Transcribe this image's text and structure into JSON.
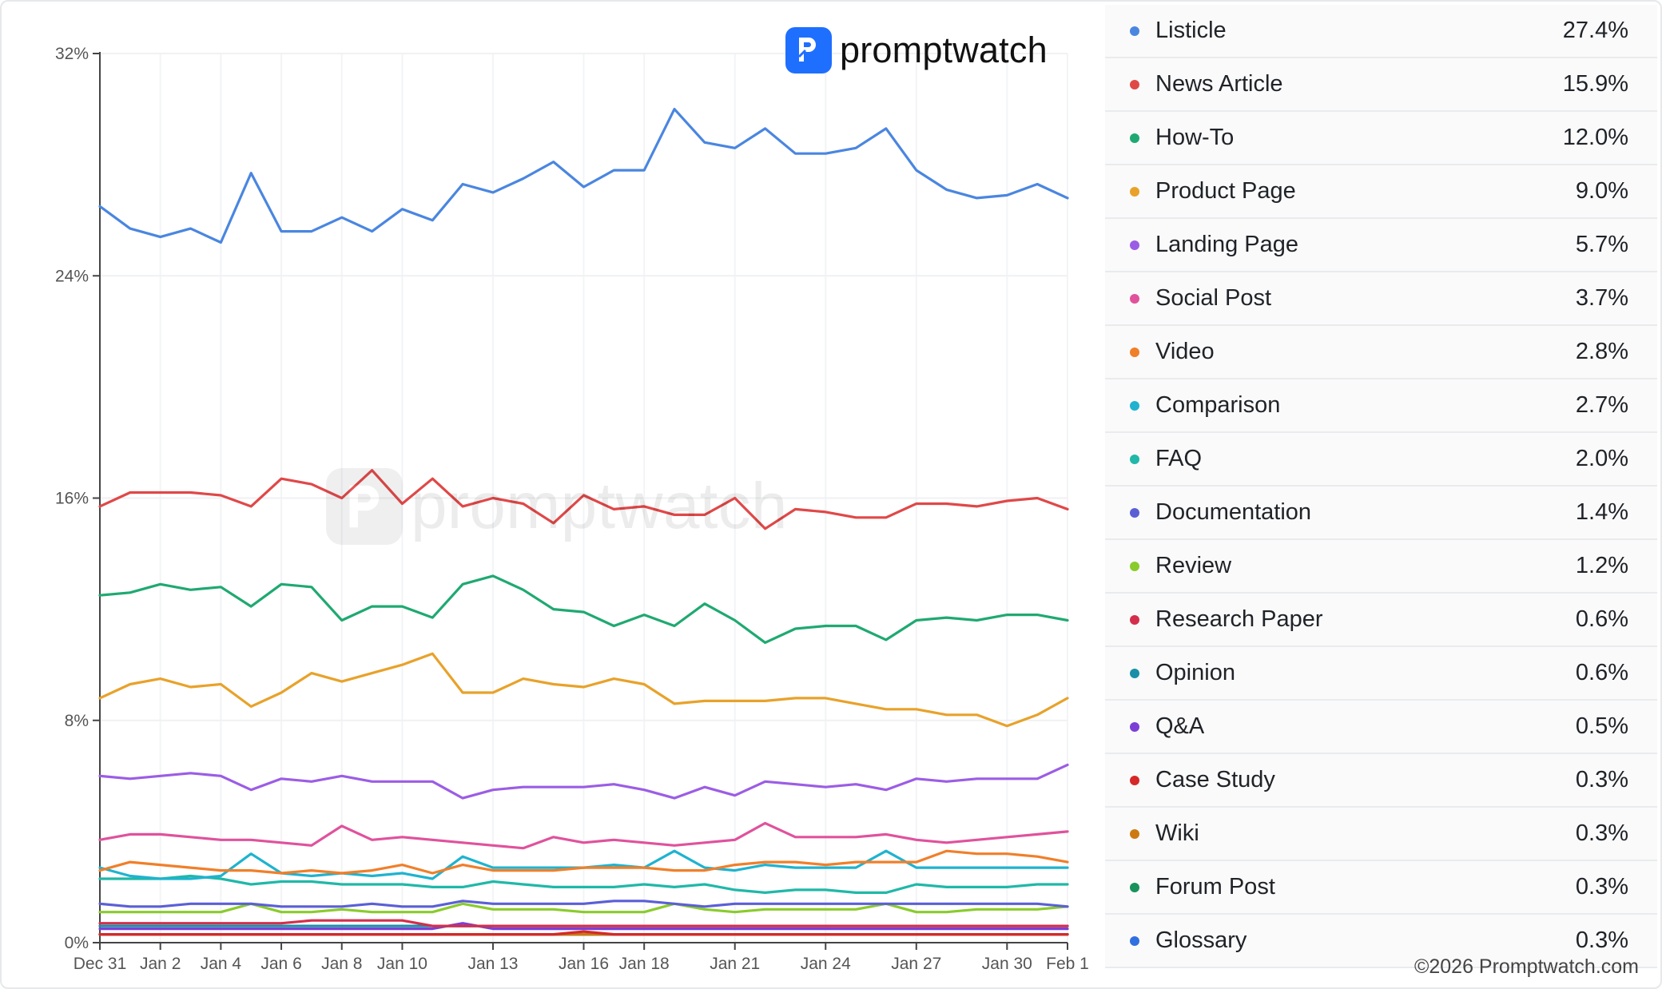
{
  "brand": {
    "name": "promptwatch",
    "accent": "#1f6fff"
  },
  "copyright": "©2026 Promptwatch.com",
  "chart_data": {
    "type": "line",
    "title": "",
    "xlabel": "",
    "ylabel": "",
    "ylim": [
      0,
      32
    ],
    "y_ticks": [
      {
        "value": 0,
        "label": "0%"
      },
      {
        "value": 8,
        "label": "8%"
      },
      {
        "value": 16,
        "label": "16%"
      },
      {
        "value": 24,
        "label": "24%"
      },
      {
        "value": 32,
        "label": "32%"
      }
    ],
    "x_ticks": [
      {
        "index": 0,
        "label": "Dec 31"
      },
      {
        "index": 2,
        "label": "Jan 2"
      },
      {
        "index": 4,
        "label": "Jan 4"
      },
      {
        "index": 6,
        "label": "Jan 6"
      },
      {
        "index": 8,
        "label": "Jan 8"
      },
      {
        "index": 10,
        "label": "Jan 10"
      },
      {
        "index": 13,
        "label": "Jan 13"
      },
      {
        "index": 16,
        "label": "Jan 16"
      },
      {
        "index": 18,
        "label": "Jan 18"
      },
      {
        "index": 21,
        "label": "Jan 21"
      },
      {
        "index": 24,
        "label": "Jan 24"
      },
      {
        "index": 27,
        "label": "Jan 27"
      },
      {
        "index": 30,
        "label": "Jan 30"
      },
      {
        "index": 32,
        "label": "Feb 1"
      }
    ],
    "x": [
      "Dec 31",
      "Jan 1",
      "Jan 2",
      "Jan 3",
      "Jan 4",
      "Jan 5",
      "Jan 6",
      "Jan 7",
      "Jan 8",
      "Jan 9",
      "Jan 10",
      "Jan 11",
      "Jan 12",
      "Jan 13",
      "Jan 14",
      "Jan 15",
      "Jan 16",
      "Jan 17",
      "Jan 18",
      "Jan 19",
      "Jan 20",
      "Jan 21",
      "Jan 22",
      "Jan 23",
      "Jan 24",
      "Jan 25",
      "Jan 26",
      "Jan 27",
      "Jan 28",
      "Jan 29",
      "Jan 30",
      "Jan 31",
      "Feb 1"
    ],
    "grid": true,
    "legend_position": "right",
    "series": [
      {
        "name": "Listicle",
        "value_label": "27.4%",
        "color": "#4a86e0",
        "values": [
          26.5,
          25.7,
          25.4,
          25.7,
          25.2,
          27.7,
          25.6,
          25.6,
          26.1,
          25.6,
          26.4,
          26.0,
          27.3,
          27.0,
          27.5,
          28.1,
          27.2,
          27.8,
          27.8,
          30.0,
          28.8,
          28.6,
          29.3,
          28.4,
          28.4,
          28.6,
          29.3,
          27.8,
          27.1,
          26.8,
          26.9,
          27.3,
          26.8
        ]
      },
      {
        "name": "News Article",
        "value_label": "15.9%",
        "color": "#e04848",
        "values": [
          15.7,
          16.2,
          16.2,
          16.2,
          16.1,
          15.7,
          16.7,
          16.5,
          16.0,
          17.0,
          15.8,
          16.7,
          15.7,
          16.0,
          15.8,
          15.1,
          16.1,
          15.6,
          15.7,
          15.4,
          15.4,
          16.0,
          14.9,
          15.6,
          15.5,
          15.3,
          15.3,
          15.8,
          15.8,
          15.7,
          15.9,
          16.0,
          15.6
        ]
      },
      {
        "name": "How-To",
        "value_label": "12.0%",
        "color": "#1fa971",
        "values": [
          12.5,
          12.6,
          12.9,
          12.7,
          12.8,
          12.1,
          12.9,
          12.8,
          11.6,
          12.1,
          12.1,
          11.7,
          12.9,
          13.2,
          12.7,
          12.0,
          11.9,
          11.4,
          11.8,
          11.4,
          12.2,
          11.6,
          10.8,
          11.3,
          11.4,
          11.4,
          10.9,
          11.6,
          11.7,
          11.6,
          11.8,
          11.8,
          11.6
        ]
      },
      {
        "name": "Product Page",
        "value_label": "9.0%",
        "color": "#e8a22a",
        "values": [
          8.8,
          9.3,
          9.5,
          9.2,
          9.3,
          8.5,
          9.0,
          9.7,
          9.4,
          9.7,
          10.0,
          10.4,
          9.0,
          9.0,
          9.5,
          9.3,
          9.2,
          9.5,
          9.3,
          8.6,
          8.7,
          8.7,
          8.7,
          8.8,
          8.8,
          8.6,
          8.4,
          8.4,
          8.2,
          8.2,
          7.8,
          8.2,
          8.8
        ]
      },
      {
        "name": "Landing Page",
        "value_label": "5.7%",
        "color": "#9b5de5",
        "values": [
          6.0,
          5.9,
          6.0,
          6.1,
          6.0,
          5.5,
          5.9,
          5.8,
          6.0,
          5.8,
          5.8,
          5.8,
          5.2,
          5.5,
          5.6,
          5.6,
          5.6,
          5.7,
          5.5,
          5.2,
          5.6,
          5.3,
          5.8,
          5.7,
          5.6,
          5.7,
          5.5,
          5.9,
          5.8,
          5.9,
          5.9,
          5.9,
          6.4
        ]
      },
      {
        "name": "Social Post",
        "value_label": "3.7%",
        "color": "#e0529c",
        "values": [
          3.7,
          3.9,
          3.9,
          3.8,
          3.7,
          3.7,
          3.6,
          3.5,
          4.2,
          3.7,
          3.8,
          3.7,
          3.6,
          3.5,
          3.4,
          3.8,
          3.6,
          3.7,
          3.6,
          3.5,
          3.6,
          3.7,
          4.3,
          3.8,
          3.8,
          3.8,
          3.9,
          3.7,
          3.6,
          3.7,
          3.8,
          3.9,
          4.0
        ]
      },
      {
        "name": "Video",
        "value_label": "2.8%",
        "color": "#f07f2a",
        "values": [
          2.6,
          2.9,
          2.8,
          2.7,
          2.6,
          2.6,
          2.5,
          2.6,
          2.5,
          2.6,
          2.8,
          2.5,
          2.8,
          2.6,
          2.6,
          2.6,
          2.7,
          2.7,
          2.7,
          2.6,
          2.6,
          2.8,
          2.9,
          2.9,
          2.8,
          2.9,
          2.9,
          2.9,
          3.3,
          3.2,
          3.2,
          3.1,
          2.9
        ]
      },
      {
        "name": "Comparison",
        "value_label": "2.7%",
        "color": "#1fb3cf",
        "values": [
          2.7,
          2.4,
          2.3,
          2.3,
          2.4,
          3.2,
          2.5,
          2.4,
          2.5,
          2.4,
          2.5,
          2.3,
          3.1,
          2.7,
          2.7,
          2.7,
          2.7,
          2.8,
          2.7,
          3.3,
          2.7,
          2.6,
          2.8,
          2.7,
          2.7,
          2.7,
          3.3,
          2.7,
          2.7,
          2.7,
          2.7,
          2.7,
          2.7
        ]
      },
      {
        "name": "FAQ",
        "value_label": "2.0%",
        "color": "#20b8a8",
        "values": [
          2.3,
          2.3,
          2.3,
          2.4,
          2.3,
          2.1,
          2.2,
          2.2,
          2.1,
          2.1,
          2.1,
          2.0,
          2.0,
          2.2,
          2.1,
          2.0,
          2.0,
          2.0,
          2.1,
          2.0,
          2.1,
          1.9,
          1.8,
          1.9,
          1.9,
          1.8,
          1.8,
          2.1,
          2.0,
          2.0,
          2.0,
          2.1,
          2.1
        ]
      },
      {
        "name": "Documentation",
        "value_label": "1.4%",
        "color": "#5b5fd6",
        "values": [
          1.4,
          1.3,
          1.3,
          1.4,
          1.4,
          1.4,
          1.3,
          1.3,
          1.3,
          1.4,
          1.3,
          1.3,
          1.5,
          1.4,
          1.4,
          1.4,
          1.4,
          1.5,
          1.5,
          1.4,
          1.3,
          1.4,
          1.4,
          1.4,
          1.4,
          1.4,
          1.4,
          1.4,
          1.4,
          1.4,
          1.4,
          1.4,
          1.3
        ]
      },
      {
        "name": "Review",
        "value_label": "1.2%",
        "color": "#8acb2c",
        "values": [
          1.1,
          1.1,
          1.1,
          1.1,
          1.1,
          1.4,
          1.1,
          1.1,
          1.2,
          1.1,
          1.1,
          1.1,
          1.4,
          1.2,
          1.2,
          1.2,
          1.1,
          1.1,
          1.1,
          1.4,
          1.2,
          1.1,
          1.2,
          1.2,
          1.2,
          1.2,
          1.4,
          1.1,
          1.1,
          1.2,
          1.2,
          1.2,
          1.3
        ]
      },
      {
        "name": "Research Paper",
        "value_label": "0.6%",
        "color": "#d42e4c",
        "values": [
          0.7,
          0.7,
          0.7,
          0.7,
          0.7,
          0.7,
          0.7,
          0.8,
          0.8,
          0.8,
          0.8,
          0.6,
          0.6,
          0.6,
          0.6,
          0.6,
          0.6,
          0.6,
          0.6,
          0.6,
          0.6,
          0.6,
          0.6,
          0.6,
          0.6,
          0.6,
          0.6,
          0.6,
          0.6,
          0.6,
          0.6,
          0.6,
          0.6
        ]
      },
      {
        "name": "Opinion",
        "value_label": "0.6%",
        "color": "#1b8fa8",
        "values": [
          0.6,
          0.6,
          0.6,
          0.6,
          0.6,
          0.6,
          0.6,
          0.6,
          0.6,
          0.6,
          0.6,
          0.6,
          0.6,
          0.6,
          0.6,
          0.6,
          0.6,
          0.6,
          0.6,
          0.6,
          0.6,
          0.6,
          0.6,
          0.6,
          0.6,
          0.6,
          0.6,
          0.6,
          0.6,
          0.6,
          0.6,
          0.6,
          0.6
        ]
      },
      {
        "name": "Q&A",
        "value_label": "0.5%",
        "color": "#7b3fd6",
        "values": [
          0.5,
          0.5,
          0.5,
          0.5,
          0.5,
          0.5,
          0.5,
          0.5,
          0.5,
          0.5,
          0.5,
          0.5,
          0.7,
          0.5,
          0.5,
          0.5,
          0.5,
          0.5,
          0.5,
          0.5,
          0.5,
          0.5,
          0.5,
          0.5,
          0.5,
          0.5,
          0.5,
          0.5,
          0.5,
          0.5,
          0.5,
          0.5,
          0.5
        ]
      },
      {
        "name": "Case Study",
        "value_label": "0.3%",
        "color": "#d62828",
        "values": [
          0.3,
          0.3,
          0.3,
          0.3,
          0.3,
          0.3,
          0.3,
          0.3,
          0.3,
          0.3,
          0.3,
          0.3,
          0.3,
          0.3,
          0.3,
          0.3,
          0.4,
          0.3,
          0.3,
          0.3,
          0.3,
          0.3,
          0.3,
          0.3,
          0.3,
          0.3,
          0.3,
          0.3,
          0.3,
          0.3,
          0.3,
          0.3,
          0.3
        ]
      },
      {
        "name": "Wiki",
        "value_label": "0.3%",
        "color": "#cc7a10",
        "values": [
          0.3,
          0.3,
          0.3,
          0.3,
          0.3,
          0.3,
          0.3,
          0.3,
          0.3,
          0.3,
          0.3,
          0.3,
          0.3,
          0.3,
          0.3,
          0.3,
          0.3,
          0.3,
          0.3,
          0.3,
          0.3,
          0.3,
          0.3,
          0.3,
          0.3,
          0.3,
          0.3,
          0.3,
          0.3,
          0.3,
          0.3,
          0.3,
          0.3
        ]
      },
      {
        "name": "Forum Post",
        "value_label": "0.3%",
        "color": "#18925a",
        "values": [
          0.3,
          0.3,
          0.3,
          0.3,
          0.3,
          0.3,
          0.3,
          0.3,
          0.3,
          0.3,
          0.3,
          0.3,
          0.3,
          0.3,
          0.3,
          0.3,
          0.3,
          0.3,
          0.3,
          0.3,
          0.3,
          0.3,
          0.3,
          0.3,
          0.3,
          0.3,
          0.3,
          0.3,
          0.3,
          0.3,
          0.3,
          0.3,
          0.3
        ]
      },
      {
        "name": "Glossary",
        "value_label": "0.3%",
        "color": "#2f6fe0",
        "values": [
          0.3,
          0.3,
          0.3,
          0.3,
          0.3,
          0.3,
          0.3,
          0.3,
          0.3,
          0.3,
          0.3,
          0.3,
          0.3,
          0.3,
          0.3,
          0.3,
          0.3,
          0.3,
          0.3,
          0.3,
          0.3,
          0.3,
          0.3,
          0.3,
          0.3,
          0.3,
          0.3,
          0.3,
          0.3,
          0.3,
          0.3,
          0.3,
          0.3
        ]
      }
    ]
  }
}
